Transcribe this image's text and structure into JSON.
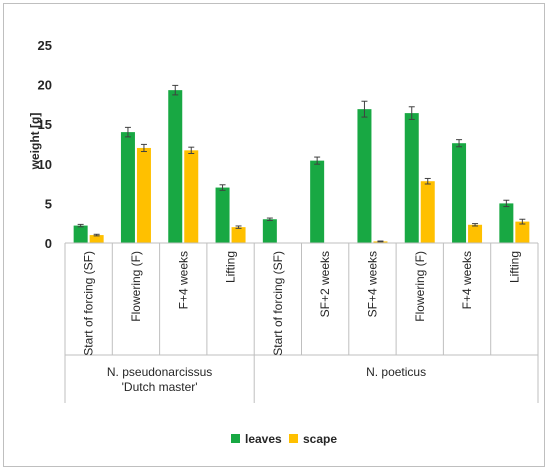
{
  "chart_data": {
    "type": "bar",
    "ylabel": "weight [g]",
    "ylim": [
      0,
      25
    ],
    "yticks": [
      0,
      5,
      10,
      15,
      20,
      25
    ],
    "grid": false,
    "legend_position": "bottom",
    "groups": [
      {
        "name": "N. pseudonarcissus",
        "name_line2": "'Dutch master'",
        "count": 4
      },
      {
        "name": "N. poeticus",
        "name_line2": "",
        "count": 6
      }
    ],
    "categories": [
      "Start of forcing (SF)",
      "Flowering (F)",
      "F+4 weeks",
      "Lifting",
      "Start of forcing (SF)",
      "SF+2 weeks",
      "SF+4 weeks",
      "Flowering (F)",
      "F+4 weeks",
      "Lifting"
    ],
    "series": [
      {
        "name": "leaves",
        "color": "#18a843",
        "values": [
          2.2,
          14.0,
          19.3,
          7.0,
          3.0,
          10.4,
          16.9,
          16.4,
          12.6,
          5.0
        ],
        "errors": [
          0.15,
          0.6,
          0.6,
          0.35,
          0.15,
          0.45,
          1.0,
          0.8,
          0.45,
          0.4
        ]
      },
      {
        "name": "scape",
        "color": "#ffc000",
        "values": [
          1.0,
          12.0,
          11.7,
          2.0,
          null,
          null,
          0.2,
          7.8,
          2.3,
          2.7
        ],
        "errors": [
          0.1,
          0.45,
          0.4,
          0.15,
          null,
          null,
          0.05,
          0.35,
          0.15,
          0.3
        ]
      }
    ]
  }
}
